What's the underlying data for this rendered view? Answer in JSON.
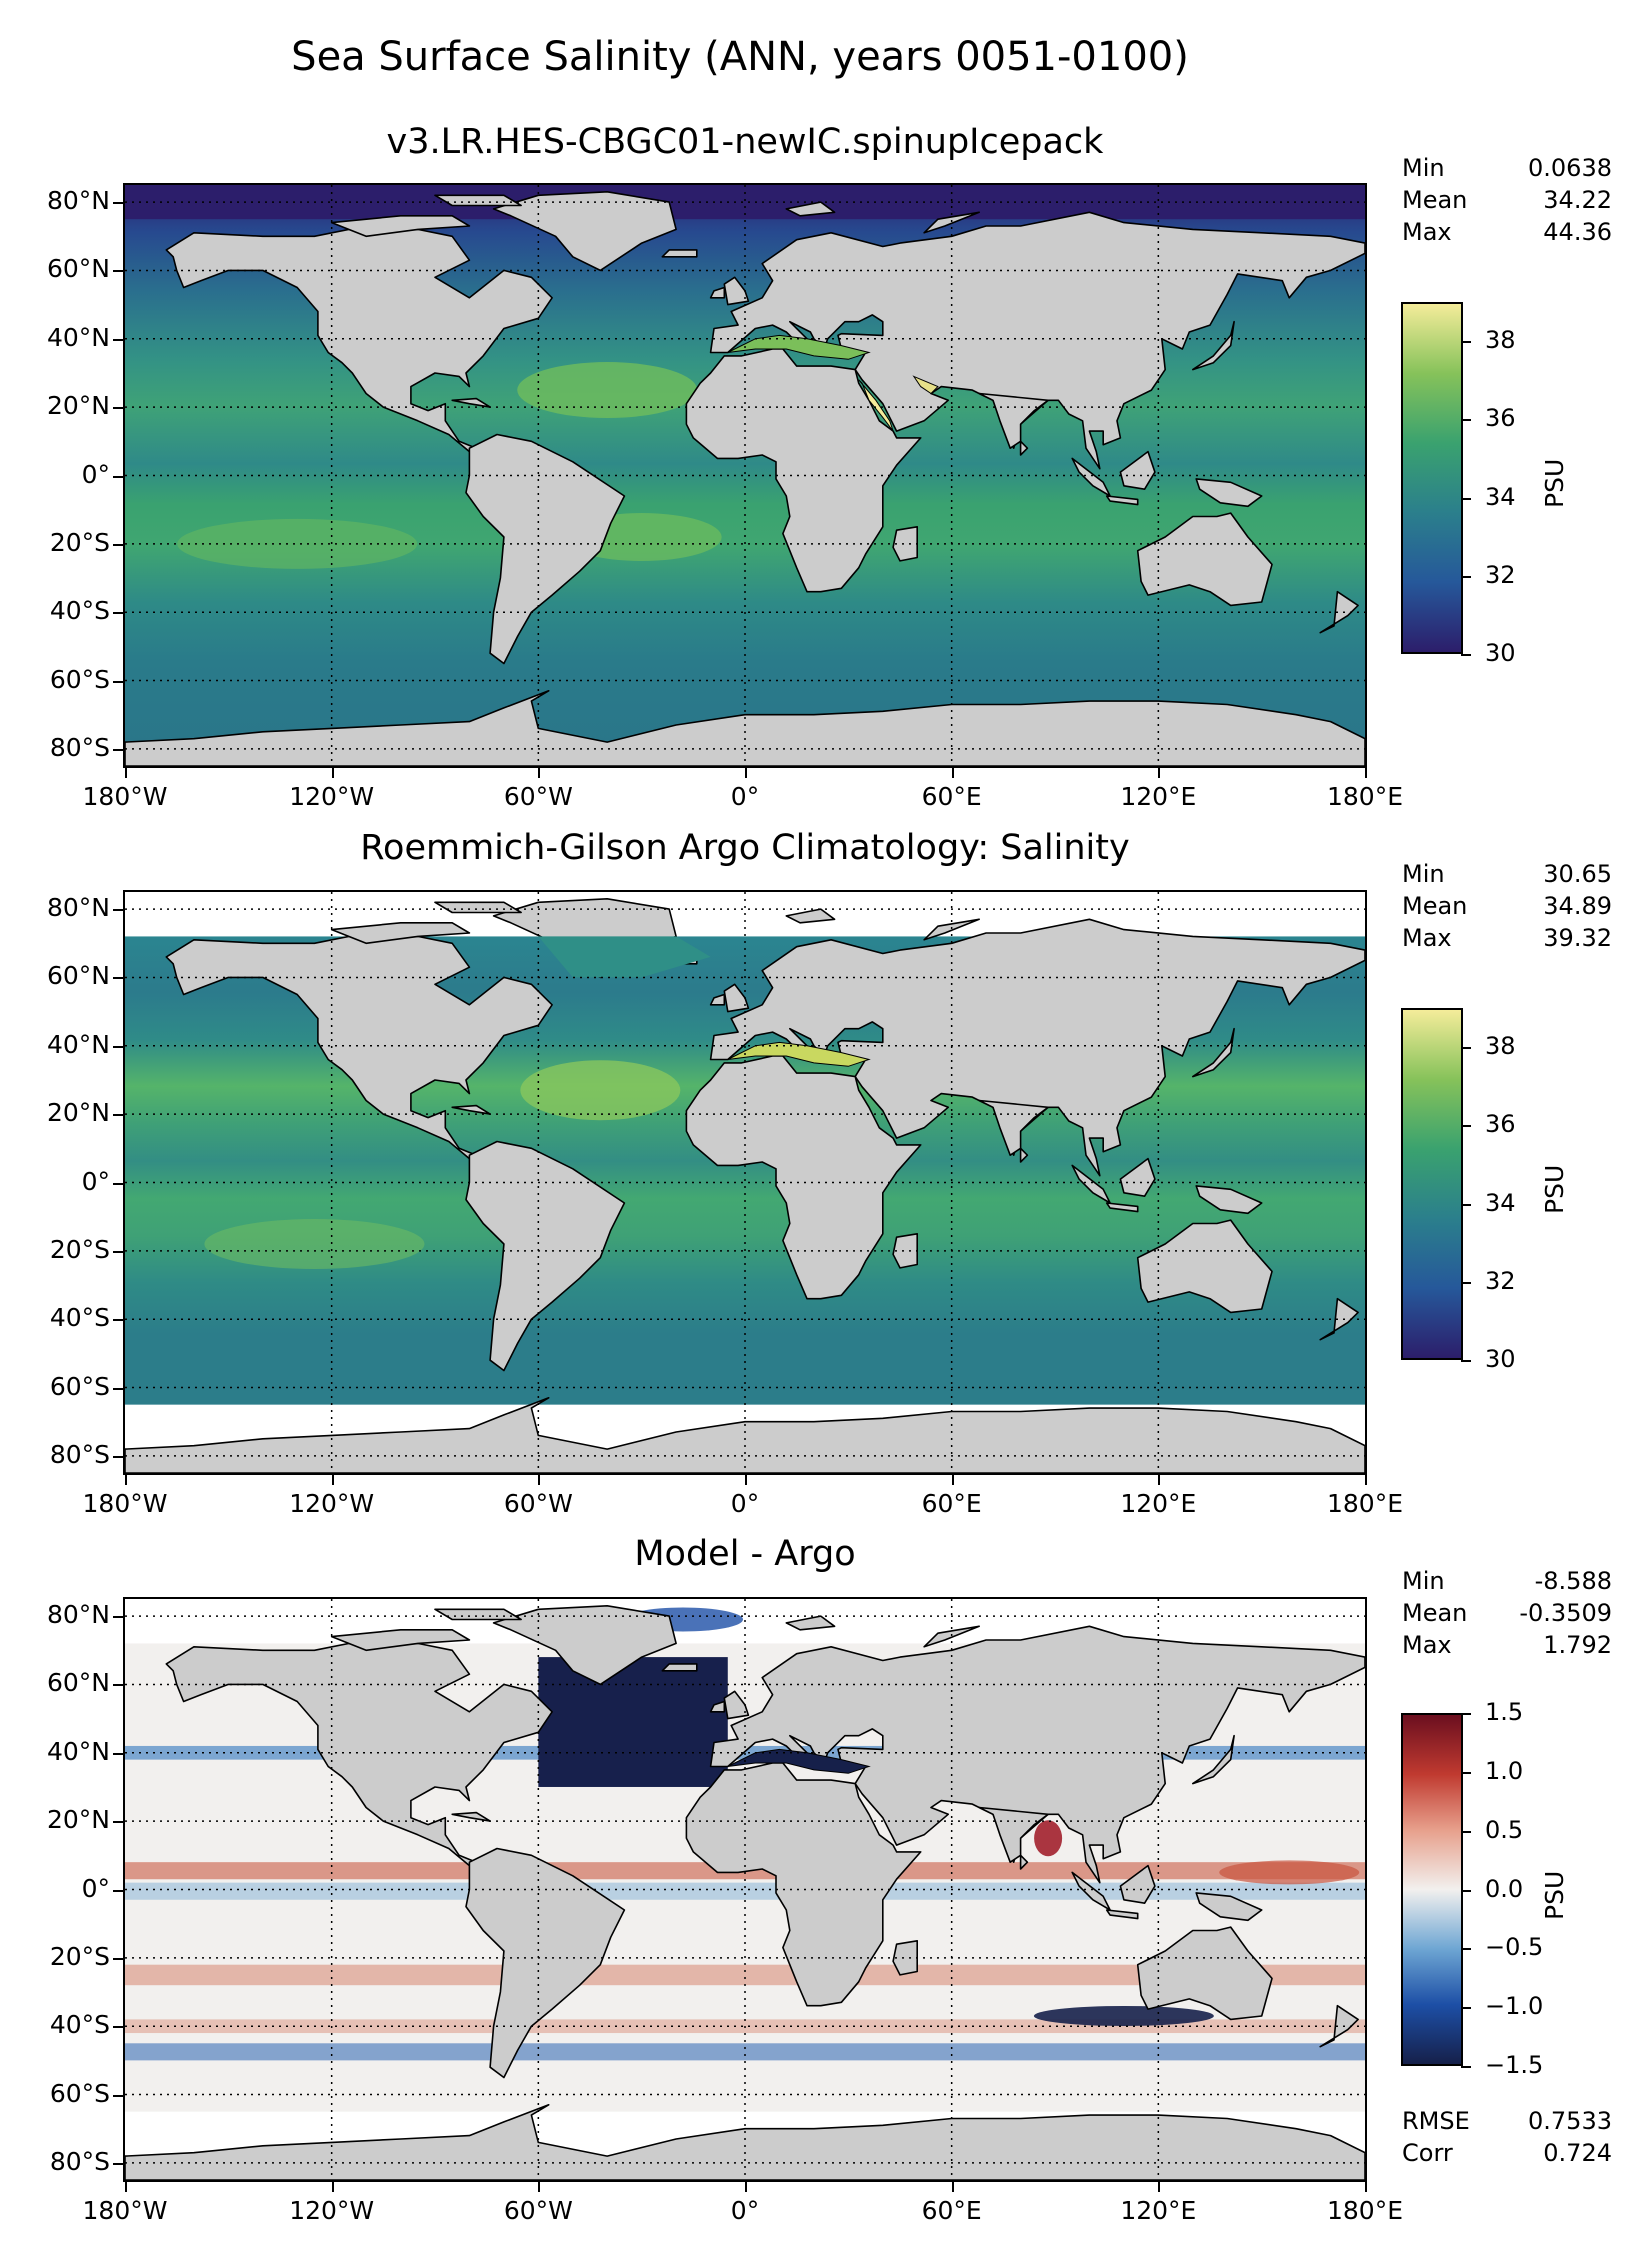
{
  "figure_title": "Sea Surface Salinity (ANN, years 0051-0100)",
  "x_tick_labels": [
    "180°W",
    "120°W",
    "60°W",
    "0°",
    "60°E",
    "120°E",
    "180°E"
  ],
  "y_tick_labels": [
    "80°N",
    "60°N",
    "40°N",
    "20°N",
    "0°",
    "20°S",
    "40°S",
    "60°S",
    "80°S"
  ],
  "chart_data": [
    {
      "type": "heatmap",
      "title": "v3.LR.HES-CBGC01-newIC.spinupIcepack",
      "xlim": [
        -180,
        180
      ],
      "ylim": [
        -85,
        85
      ],
      "stats": {
        "min_label": "Min",
        "min": "0.0638",
        "mean_label": "Mean",
        "mean": "34.22",
        "max_label": "Max",
        "max": "44.36"
      },
      "colorbar": {
        "label": "PSU",
        "range": [
          30,
          39
        ],
        "ticks": [
          "30",
          "32",
          "34",
          "36",
          "38"
        ],
        "colormap": [
          "#2c1e6b",
          "#26589a",
          "#2b7f8c",
          "#3aa26f",
          "#86c25a",
          "#f4ec9a"
        ]
      }
    },
    {
      "type": "heatmap",
      "title": "Roemmich-Gilson Argo Climatology: Salinity",
      "xlim": [
        -180,
        180
      ],
      "ylim": [
        -85,
        85
      ],
      "stats": {
        "min_label": "Min",
        "min": "30.65",
        "mean_label": "Mean",
        "mean": "34.89",
        "max_label": "Max",
        "max": "39.32"
      },
      "colorbar": {
        "label": "PSU",
        "range": [
          30,
          39
        ],
        "ticks": [
          "30",
          "32",
          "34",
          "36",
          "38"
        ],
        "colormap": [
          "#2c1e6b",
          "#26589a",
          "#2b7f8c",
          "#3aa26f",
          "#86c25a",
          "#f4ec9a"
        ]
      }
    },
    {
      "type": "heatmap",
      "title": "Model - Argo",
      "xlim": [
        -180,
        180
      ],
      "ylim": [
        -85,
        85
      ],
      "stats": {
        "min_label": "Min",
        "min": "-8.588",
        "mean_label": "Mean",
        "mean": "-0.3509",
        "max_label": "Max",
        "max": "1.792"
      },
      "colorbar": {
        "label": "PSU",
        "range": [
          -1.5,
          1.5
        ],
        "ticks": [
          "−1.5",
          "−1.0",
          "−0.5",
          "0.0",
          "0.5",
          "1.0",
          "1.5"
        ],
        "colormap": [
          "#16204a",
          "#1d4fa6",
          "#6ea6d3",
          "#f2f0ee",
          "#e7a08c",
          "#c03a30",
          "#6b0f1f"
        ]
      },
      "metrics": {
        "rmse_label": "RMSE",
        "rmse": "0.7533",
        "corr_label": "Corr",
        "corr": "0.724"
      }
    }
  ]
}
